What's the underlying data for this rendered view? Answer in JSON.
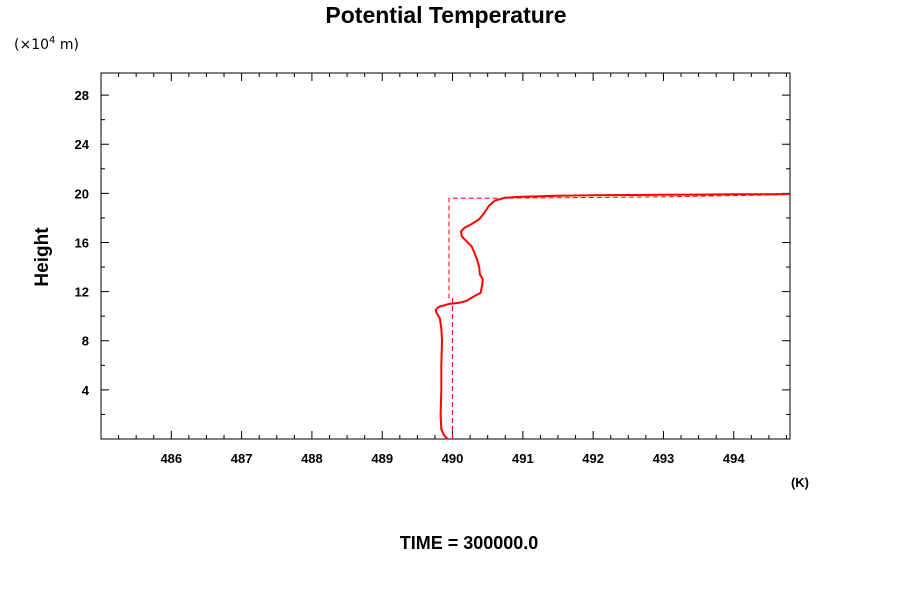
{
  "chart_data": {
    "type": "line",
    "title": "Potential Temperature",
    "ylabel": "Height",
    "y_unit_prefix": "(×10",
    "y_unit_exp": "4",
    "y_unit_suffix": " m)",
    "x_unit": "(K)",
    "footer": "TIME = 300000.0",
    "xlim": [
      485.0,
      494.8
    ],
    "ylim": [
      0,
      29.8
    ],
    "x_ticks": [
      486,
      487,
      488,
      489,
      490,
      491,
      492,
      493,
      494
    ],
    "y_ticks": [
      4,
      8,
      12,
      16,
      20,
      24,
      28
    ],
    "x_minor_step": 0.25,
    "y_minor_step": 2,
    "grid": false,
    "colors": {
      "series": "#ff0000",
      "axes": "#000000"
    },
    "series": [
      {
        "style": "solid",
        "points": [
          [
            489.93,
            0.0
          ],
          [
            489.88,
            0.3
          ],
          [
            489.84,
            0.8
          ],
          [
            489.83,
            2
          ],
          [
            489.84,
            4
          ],
          [
            489.84,
            6
          ],
          [
            489.85,
            8
          ],
          [
            489.84,
            9
          ],
          [
            489.82,
            9.8
          ],
          [
            489.77,
            10.3
          ],
          [
            489.76,
            10.5
          ],
          [
            489.8,
            10.75
          ],
          [
            489.95,
            11.0
          ],
          [
            490.1,
            11.1
          ],
          [
            490.2,
            11.25
          ],
          [
            490.3,
            11.6
          ],
          [
            490.4,
            11.9
          ],
          [
            490.42,
            12.5
          ],
          [
            490.43,
            13.0
          ],
          [
            490.39,
            13.4
          ],
          [
            490.38,
            14.0
          ],
          [
            490.35,
            14.6
          ],
          [
            490.31,
            15.2
          ],
          [
            490.27,
            15.7
          ],
          [
            490.2,
            16.1
          ],
          [
            490.13,
            16.5
          ],
          [
            490.12,
            16.9
          ],
          [
            490.17,
            17.2
          ],
          [
            490.27,
            17.5
          ],
          [
            490.38,
            17.9
          ],
          [
            490.45,
            18.4
          ],
          [
            490.52,
            19.0
          ],
          [
            490.6,
            19.4
          ],
          [
            490.75,
            19.65
          ],
          [
            491.0,
            19.72
          ],
          [
            491.5,
            19.8
          ],
          [
            492.0,
            19.85
          ],
          [
            492.5,
            19.87
          ],
          [
            493.0,
            19.88
          ],
          [
            493.5,
            19.9
          ],
          [
            494.0,
            19.92
          ],
          [
            494.5,
            19.93
          ],
          [
            494.8,
            19.95
          ]
        ]
      },
      {
        "style": "dashed",
        "points": [
          [
            490.0,
            0.0
          ],
          [
            490.0,
            11.5
          ],
          [
            489.95,
            11.5
          ],
          [
            489.95,
            19.6
          ],
          [
            490.5,
            19.6
          ],
          [
            491.0,
            19.62
          ],
          [
            492.0,
            19.66
          ],
          [
            493.0,
            19.72
          ],
          [
            494.0,
            19.82
          ],
          [
            494.8,
            19.9
          ]
        ]
      }
    ]
  }
}
